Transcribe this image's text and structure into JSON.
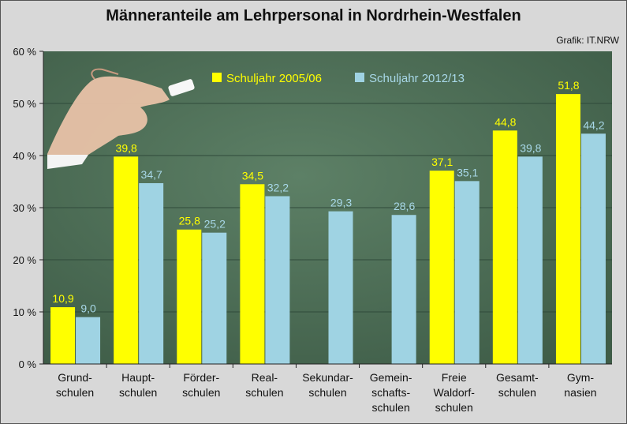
{
  "title": "Männeranteile am Lehrpersonal in Nordrhein-Westfalen",
  "credit": "Grafik: IT.NRW",
  "chart_data": {
    "type": "bar",
    "title": "Männeranteile am Lehrpersonal in Nordrhein-Westfalen",
    "xlabel": "",
    "ylabel": "",
    "ylim": [
      0,
      60
    ],
    "y_ticks": [
      "0 %",
      "10 %",
      "20 %",
      "30 %",
      "40 %",
      "50 %",
      "60 %"
    ],
    "grid": true,
    "legend_position": "top",
    "categories": [
      [
        "Grund-",
        "schulen"
      ],
      [
        "Haupt-",
        "schulen"
      ],
      [
        "Förder-",
        "schulen"
      ],
      [
        "Real-",
        "schulen"
      ],
      [
        "Sekundar-",
        "schulen"
      ],
      [
        "Gemein-",
        "schafts-",
        "schulen"
      ],
      [
        "Freie",
        "Waldorf-",
        "schulen"
      ],
      [
        "Gesamt-",
        "schulen"
      ],
      [
        "Gym-",
        "nasien"
      ]
    ],
    "series": [
      {
        "name": "Schuljahr 2005/06",
        "color": "#ffff00",
        "label_color": "#ffff00",
        "values": [
          10.9,
          39.8,
          25.8,
          34.5,
          null,
          null,
          37.1,
          44.8,
          51.8
        ],
        "labels": [
          "10,9",
          "39,8",
          "25,8",
          "34,5",
          "",
          "",
          "37,1",
          "44,8",
          "51,8"
        ]
      },
      {
        "name": "Schuljahr 2012/13",
        "color": "#9fd3e3",
        "label_color": "#a8d8e8",
        "values": [
          9.0,
          34.7,
          25.2,
          32.2,
          29.3,
          28.6,
          35.1,
          39.8,
          44.2
        ],
        "labels": [
          "9,0",
          "34,7",
          "25,2",
          "32,2",
          "29,3",
          "28,6",
          "35,1",
          "39,8",
          "44,2"
        ]
      }
    ],
    "colors": {
      "plot_background": "#4f7058",
      "gridline": "#2f4a3a",
      "axis": "#222222"
    }
  }
}
